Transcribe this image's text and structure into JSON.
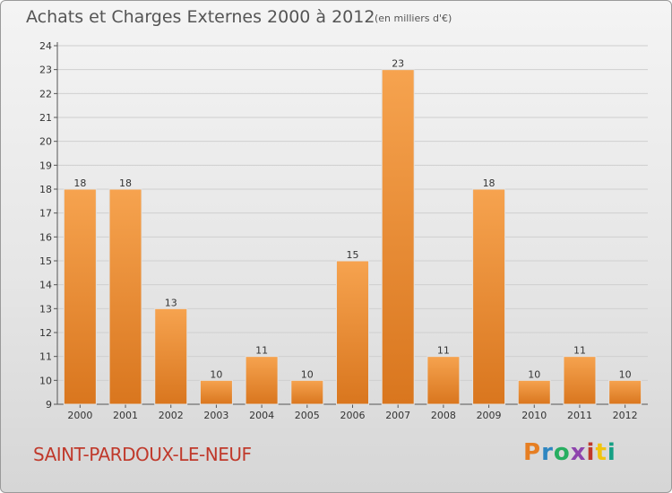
{
  "header": {
    "title": "Achats et Charges Externes 2000 à 2012",
    "subtitle": "(en milliers d'€)"
  },
  "footer": {
    "location": "SAINT-PARDOUX-LE-NEUF",
    "logo_text": "Proxiti"
  },
  "colors": {
    "bar_top": "#f6a34f",
    "bar_bottom": "#d9761e",
    "title": "#555555",
    "location": "#c0392b",
    "grid": "#cfcfcf"
  },
  "chart_data": {
    "type": "bar",
    "title": "Achats et Charges Externes 2000 à 2012",
    "subtitle": "(en milliers d'€)",
    "categories": [
      "2000",
      "2001",
      "2002",
      "2003",
      "2004",
      "2005",
      "2006",
      "2007",
      "2008",
      "2009",
      "2010",
      "2011",
      "2012"
    ],
    "values": [
      18,
      18,
      13,
      10,
      11,
      10,
      15,
      23,
      11,
      18,
      10,
      11,
      10
    ],
    "data_labels": [
      "18",
      "18",
      "13",
      "10",
      "11",
      "10",
      "15",
      "23",
      "11",
      "18",
      "10",
      "11",
      "10"
    ],
    "xlabel": "",
    "ylabel": "",
    "ylim": [
      9,
      24
    ],
    "yticks": [
      9,
      10,
      11,
      12,
      13,
      14,
      15,
      16,
      17,
      18,
      19,
      20,
      21,
      22,
      23,
      24
    ],
    "grid": true,
    "legend": "none"
  }
}
